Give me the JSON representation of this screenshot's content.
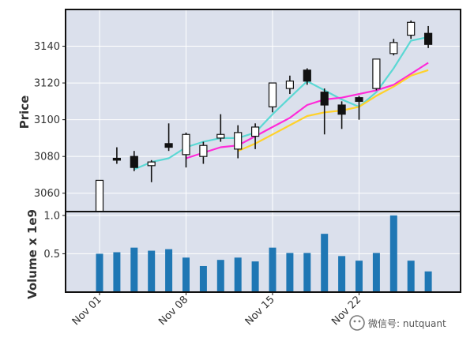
{
  "chart_data": {
    "type": "candlestick",
    "price_panel": {
      "ylabel": "Price",
      "ylim": [
        3050,
        3160
      ],
      "yticks": [
        3060,
        3080,
        3100,
        3120,
        3140
      ],
      "grid": true
    },
    "volume_panel": {
      "ylabel": "Volume x 1e9",
      "ylim": [
        0.0,
        1.05
      ],
      "yticks": [
        0.5,
        1.0
      ],
      "yticklabels": [
        "0.5",
        "1.0"
      ],
      "grid": true
    },
    "xticks": [
      "Nov 01",
      "Nov 08",
      "Nov 15",
      "Nov 22"
    ],
    "candles": [
      {
        "o": 3050,
        "h": 3067,
        "l": 3050,
        "c": 3067
      },
      {
        "o": 3079,
        "h": 3085,
        "l": 3076,
        "c": 3078
      },
      {
        "o": 3080,
        "h": 3083,
        "l": 3072,
        "c": 3074
      },
      {
        "o": 3075,
        "h": 3078,
        "l": 3066,
        "c": 3077
      },
      {
        "o": 3087,
        "h": 3098,
        "l": 3083,
        "c": 3085
      },
      {
        "o": 3081,
        "h": 3093,
        "l": 3074,
        "c": 3092
      },
      {
        "o": 3080,
        "h": 3088,
        "l": 3076,
        "c": 3086
      },
      {
        "o": 3090,
        "h": 3103,
        "l": 3088,
        "c": 3092
      },
      {
        "o": 3084,
        "h": 3097,
        "l": 3079,
        "c": 3093
      },
      {
        "o": 3091,
        "h": 3098,
        "l": 3084,
        "c": 3096
      },
      {
        "o": 3107,
        "h": 3120,
        "l": 3104,
        "c": 3120
      },
      {
        "o": 3117,
        "h": 3124,
        "l": 3114,
        "c": 3121
      },
      {
        "o": 3127,
        "h": 3128,
        "l": 3119,
        "c": 3121
      },
      {
        "o": 3115,
        "h": 3117,
        "l": 3092,
        "c": 3108
      },
      {
        "o": 3108,
        "h": 3110,
        "l": 3095,
        "c": 3103
      },
      {
        "o": 3112,
        "h": 3113,
        "l": 3100,
        "c": 3110
      },
      {
        "o": 3117,
        "h": 3133,
        "l": 3116,
        "c": 3133
      },
      {
        "o": 3136,
        "h": 3144,
        "l": 3135,
        "c": 3142
      },
      {
        "o": 3146,
        "h": 3154,
        "l": 3144,
        "c": 3153
      },
      {
        "o": 3147,
        "h": 3151,
        "l": 3139,
        "c": 3141
      }
    ],
    "volume": [
      0.5,
      0.52,
      0.58,
      0.54,
      0.56,
      0.45,
      0.34,
      0.42,
      0.45,
      0.4,
      0.58,
      0.51,
      0.51,
      0.76,
      0.47,
      0.41,
      0.51,
      1.0,
      0.41,
      0.27
    ],
    "moving_averages": [
      {
        "name": "ma3",
        "color": "#5bd8d4",
        "values": [
          null,
          null,
          3073,
          3077,
          3079,
          3085,
          3088,
          3090,
          3090,
          3093,
          3103,
          3112,
          3121,
          3116,
          3111,
          3107,
          3115,
          3128,
          3143,
          3145
        ]
      },
      {
        "name": "ma6",
        "color": "#ff2ad8",
        "values": [
          null,
          null,
          null,
          null,
          null,
          3079,
          3082,
          3085,
          3086,
          3091,
          3096,
          3101,
          3108,
          3111,
          3112,
          3114,
          3116,
          3119,
          3125,
          3131
        ]
      },
      {
        "name": "ma9",
        "color": "#ffd12a",
        "values": [
          null,
          null,
          null,
          null,
          null,
          null,
          null,
          null,
          3083,
          3087,
          3092,
          3097,
          3102,
          3104,
          3105,
          3107,
          3113,
          3118,
          3124,
          3127
        ]
      }
    ],
    "colors": {
      "panel_bg": "#dbe0ec",
      "grid": "#ffffff",
      "candle_up": "#ffffff",
      "candle_down": "#111111",
      "volume_bar": "#1f77b4"
    }
  },
  "watermark": {
    "text": "微信号: nutquant"
  }
}
